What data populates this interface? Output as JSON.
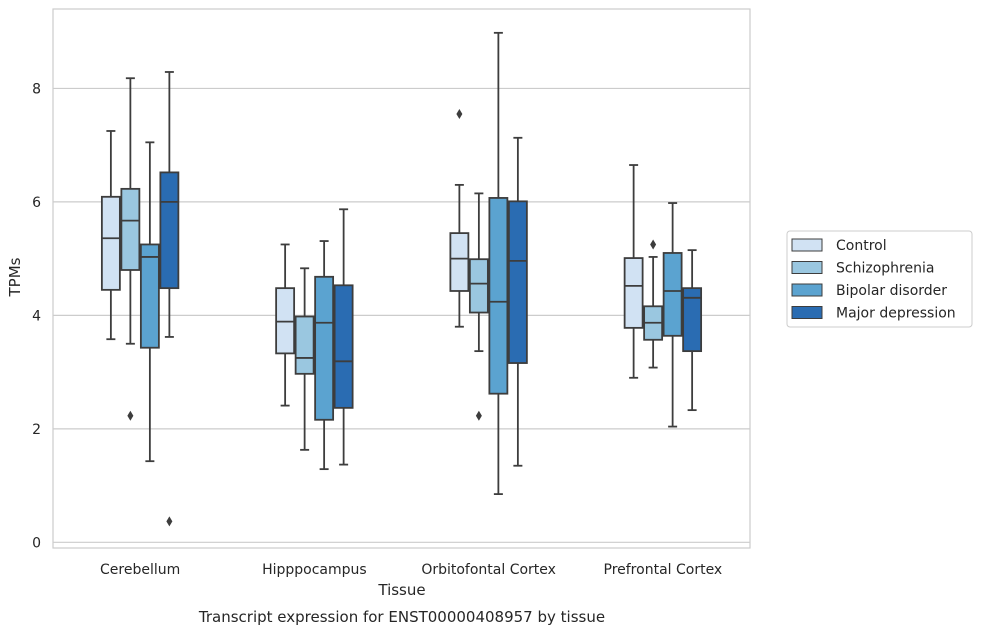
{
  "caption": "Transcript expression for ENST00000408957 by tissue",
  "chart_data": {
    "type": "boxplot",
    "xlabel": "Tissue",
    "ylabel": "TPMs",
    "ylim": [
      -0.1,
      9.4
    ],
    "yticks": [
      0,
      2,
      4,
      6,
      8
    ],
    "grid": "horizontal",
    "legend_position": "right",
    "categories": [
      "Cerebellum",
      "Hipppocampus",
      "Orbitofontal Cortex",
      "Prefrontal Cortex"
    ],
    "series": [
      {
        "name": "Control",
        "color": "#d1e2f3",
        "boxes": [
          {
            "min": 3.58,
            "q1": 4.45,
            "median": 5.36,
            "q3": 6.09,
            "max": 7.25,
            "outliers": []
          },
          {
            "min": 2.41,
            "q1": 3.33,
            "median": 3.89,
            "q3": 4.48,
            "max": 5.25,
            "outliers": []
          },
          {
            "min": 3.8,
            "q1": 4.43,
            "median": 5.0,
            "q3": 5.45,
            "max": 6.3,
            "outliers": [
              7.55
            ]
          },
          {
            "min": 2.9,
            "q1": 3.78,
            "median": 4.52,
            "q3": 5.01,
            "max": 6.65,
            "outliers": []
          }
        ]
      },
      {
        "name": "Schizophrenia",
        "color": "#9ac7e0",
        "boxes": [
          {
            "min": 3.5,
            "q1": 4.8,
            "median": 5.67,
            "q3": 6.23,
            "max": 8.18,
            "outliers": [
              2.23
            ]
          },
          {
            "min": 1.63,
            "q1": 2.97,
            "median": 3.25,
            "q3": 3.98,
            "max": 4.83,
            "outliers": []
          },
          {
            "min": 3.37,
            "q1": 4.05,
            "median": 4.56,
            "q3": 4.99,
            "max": 6.15,
            "outliers": [
              2.23
            ]
          },
          {
            "min": 3.08,
            "q1": 3.57,
            "median": 3.87,
            "q3": 4.16,
            "max": 5.03,
            "outliers": [
              5.25
            ]
          }
        ]
      },
      {
        "name": "Bipolar disorder",
        "color": "#5ba3d0",
        "boxes": [
          {
            "min": 1.43,
            "q1": 3.43,
            "median": 5.03,
            "q3": 5.25,
            "max": 7.05,
            "outliers": []
          },
          {
            "min": 1.29,
            "q1": 2.16,
            "median": 3.87,
            "q3": 4.68,
            "max": 5.31,
            "outliers": []
          },
          {
            "min": 0.85,
            "q1": 2.62,
            "median": 4.24,
            "q3": 6.07,
            "max": 8.98,
            "outliers": []
          },
          {
            "min": 2.04,
            "q1": 3.64,
            "median": 4.43,
            "q3": 5.1,
            "max": 5.98,
            "outliers": []
          }
        ]
      },
      {
        "name": "Major depression",
        "color": "#2a6cb2",
        "boxes": [
          {
            "min": 3.62,
            "q1": 4.48,
            "median": 6.0,
            "q3": 6.52,
            "max": 8.29,
            "outliers": [
              0.37
            ]
          },
          {
            "min": 1.37,
            "q1": 2.37,
            "median": 3.19,
            "q3": 4.53,
            "max": 5.87,
            "outliers": []
          },
          {
            "min": 1.35,
            "q1": 3.16,
            "median": 4.96,
            "q3": 6.01,
            "max": 7.13,
            "outliers": []
          },
          {
            "min": 2.33,
            "q1": 3.37,
            "median": 4.31,
            "q3": 4.48,
            "max": 5.15,
            "outliers": []
          }
        ]
      }
    ]
  }
}
